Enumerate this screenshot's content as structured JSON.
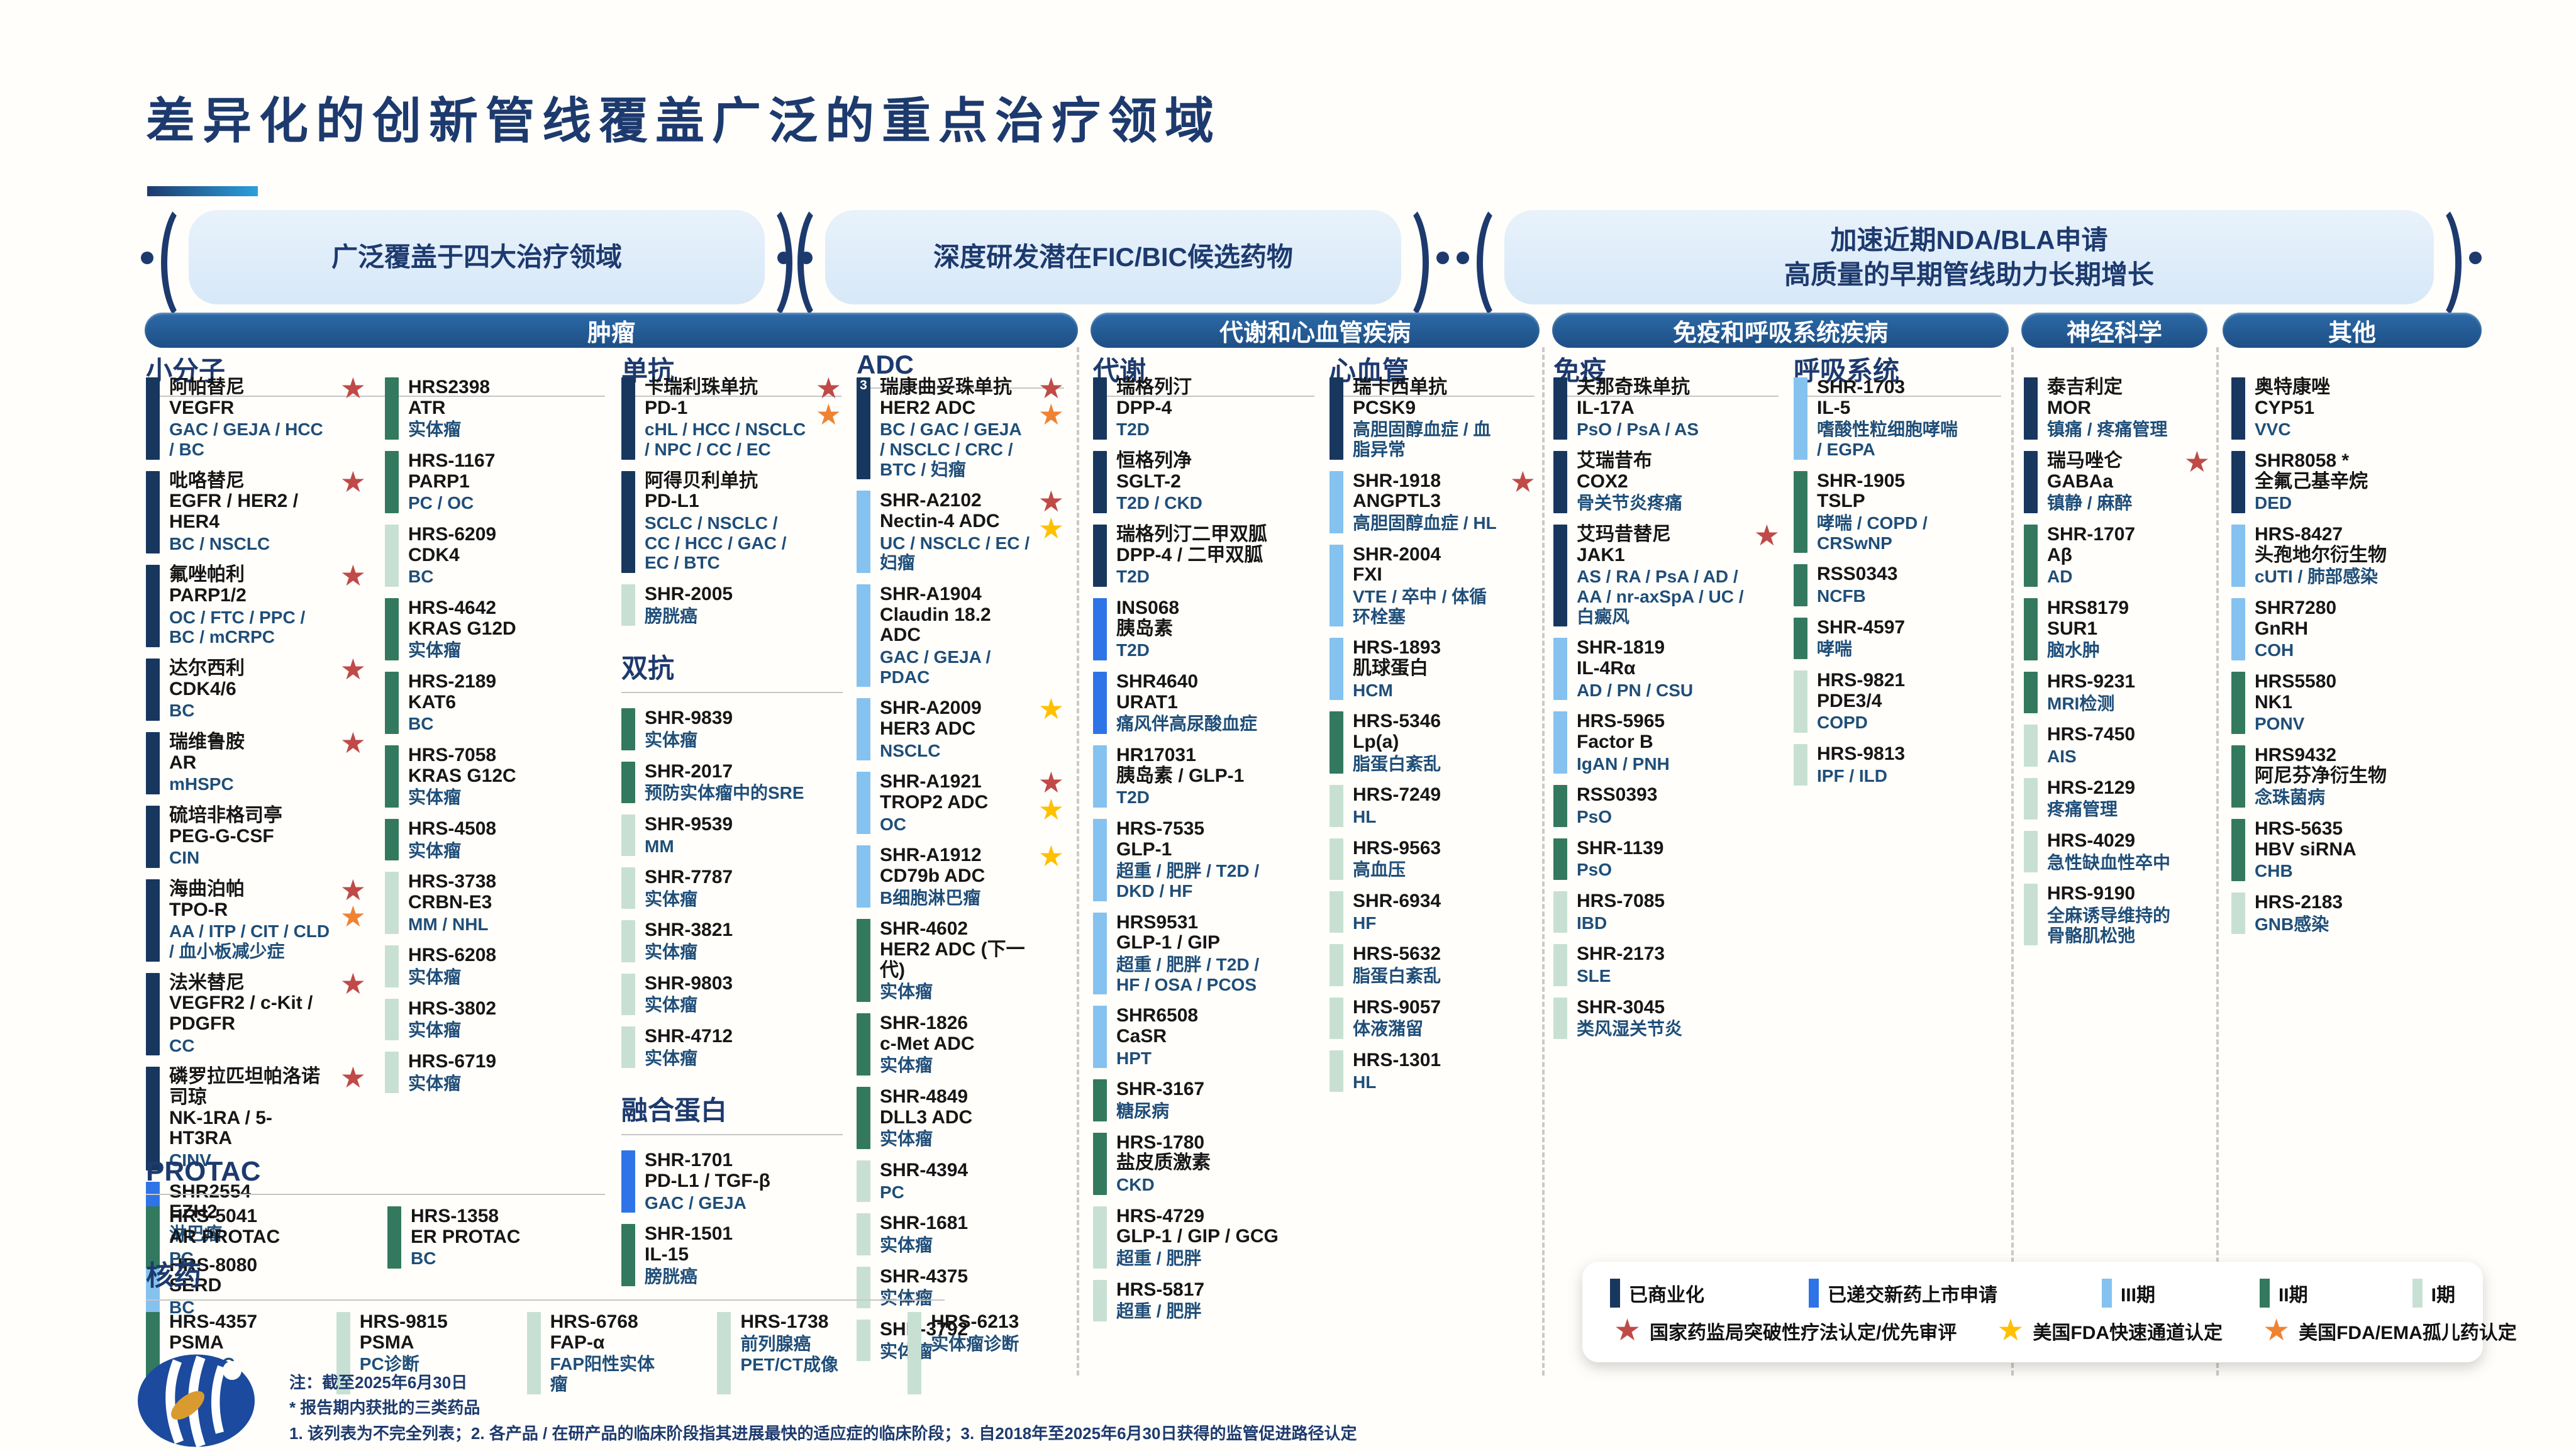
{
  "title": "差异化的创新管线覆盖广泛的重点治疗领域",
  "banners": [
    {
      "l1": "广泛覆盖于四大治疗领域"
    },
    {
      "l1": "深度研发潜在FIC/BIC候选药物"
    },
    {
      "l1": "加速近期NDA/BLA申请",
      "l2": "高质量的早期管线助力长期增长"
    }
  ],
  "sections": [
    "肿瘤",
    "代谢和心血管疾病",
    "免疫和呼吸系统疾病",
    "神经科学",
    "其他"
  ],
  "subheaders": [
    "小分子",
    "单抗",
    "ADC",
    "代谢",
    "心血管",
    "免疫",
    "呼吸系统"
  ],
  "block_labels": {
    "protac": "PROTAC",
    "radiopharma": "核药"
  },
  "phase_colors": {
    "comm": "#17375e",
    "nda": "#2e74e8",
    "p3": "#85c2f0",
    "p2": "#33795f",
    "p1": "#c8e0d3"
  },
  "star_colors": {
    "bt": "#bf4a47",
    "ft": "#ffc000",
    "od": "#ee8333"
  },
  "columns": {
    "sm1": [
      {
        "n": "阿帕替尼",
        "t": "VEGFR",
        "i": "GAC / GEJA / HCC / BC",
        "p": "comm",
        "s": [
          "bt"
        ]
      },
      {
        "n": "吡咯替尼",
        "t": "EGFR / HER2 / HER4",
        "i": "BC / NSCLC",
        "p": "comm",
        "s": [
          "bt"
        ]
      },
      {
        "n": "氟唑帕利",
        "t": "PARP1/2",
        "i": "OC / FTC / PPC / BC / mCRPC",
        "p": "comm",
        "s": [
          "bt"
        ]
      },
      {
        "n": "达尔西利",
        "t": "CDK4/6",
        "i": "BC",
        "p": "comm",
        "s": [
          "bt"
        ]
      },
      {
        "n": "瑞维鲁胺",
        "t": "AR",
        "i": "mHSPC",
        "p": "comm",
        "s": [
          "bt"
        ]
      },
      {
        "n": "硫培非格司亭",
        "t": "PEG-G-CSF",
        "i": "CIN",
        "p": "comm"
      },
      {
        "n": "海曲泊帕",
        "t": "TPO-R",
        "i": "AA / ITP / CIT / CLD / 血小板减少症",
        "p": "comm",
        "s": [
          "bt",
          "od"
        ]
      },
      {
        "n": "法米替尼",
        "t": "VEGFR2 / c-Kit / PDGFR",
        "i": "CC",
        "p": "comm",
        "s": [
          "bt"
        ]
      },
      {
        "n": "磷罗拉匹坦帕洛诺司琼",
        "t": "NK-1RA / 5-HT3RA",
        "i": "CINV",
        "p": "comm",
        "s": [
          "bt"
        ]
      },
      {
        "n": "SHR2554",
        "t": "EZH2",
        "i": "淋巴瘤",
        "p": "nda"
      },
      {
        "n": "HRS-8080",
        "t": "SERD",
        "i": "BC",
        "p": "p3"
      }
    ],
    "sm2": [
      {
        "n": "HRS2398",
        "t": "ATR",
        "i": "实体瘤",
        "p": "p2"
      },
      {
        "n": "HRS-1167",
        "t": "PARP1",
        "i": "PC / OC",
        "p": "p2"
      },
      {
        "n": "HRS-6209",
        "t": "CDK4",
        "i": "BC",
        "p": "p1"
      },
      {
        "n": "HRS-4642",
        "t": "KRAS G12D",
        "i": "实体瘤",
        "p": "p2"
      },
      {
        "n": "HRS-2189",
        "t": "KAT6",
        "i": "BC",
        "p": "p2"
      },
      {
        "n": "HRS-7058",
        "t": "KRAS G12C",
        "i": "实体瘤",
        "p": "p2"
      },
      {
        "n": "HRS-4508",
        "t": "",
        "i": "实体瘤",
        "p": "p2"
      },
      {
        "n": "HRS-3738",
        "t": "CRBN-E3",
        "i": "MM / NHL",
        "p": "p1"
      },
      {
        "n": "HRS-6208",
        "t": "",
        "i": "实体瘤",
        "p": "p1"
      },
      {
        "n": "HRS-3802",
        "t": "",
        "i": "实体瘤",
        "p": "p1"
      },
      {
        "n": "HRS-6719",
        "t": "",
        "i": "实体瘤",
        "p": "p1"
      }
    ],
    "mab": [
      {
        "n": "卡瑞利珠单抗",
        "t": "PD-1",
        "i": "cHL / HCC / NSCLC / NPC / CC / EC",
        "p": "comm",
        "s": [
          "bt",
          "od"
        ]
      },
      {
        "n": "阿得贝利单抗",
        "t": "PD-L1",
        "i": "SCLC / NSCLC / CC / HCC / GAC / EC / BTC",
        "p": "comm"
      },
      {
        "n": "SHR-2005",
        "t": "",
        "i": "膀胱癌",
        "p": "p1"
      },
      {
        "label": "双抗"
      },
      {
        "n": "SHR-9839",
        "t": "",
        "i": "实体瘤",
        "p": "p2"
      },
      {
        "n": "SHR-2017",
        "t": "",
        "i": "预防实体瘤中的SRE",
        "p": "p2"
      },
      {
        "n": "SHR-9539",
        "t": "",
        "i": "MM",
        "p": "p1"
      },
      {
        "n": "SHR-7787",
        "t": "",
        "i": "实体瘤",
        "p": "p1"
      },
      {
        "n": "SHR-3821",
        "t": "",
        "i": "实体瘤",
        "p": "p1"
      },
      {
        "n": "SHR-9803",
        "t": "",
        "i": "实体瘤",
        "p": "p1"
      },
      {
        "n": "SHR-4712",
        "t": "",
        "i": "实体瘤",
        "p": "p1"
      },
      {
        "label": "融合蛋白"
      },
      {
        "n": "SHR-1701",
        "t": "PD-L1 / TGF-β",
        "i": "GAC / GEJA",
        "p": "nda"
      },
      {
        "n": "SHR-1501",
        "t": "IL-15",
        "i": "膀胱癌",
        "p": "p2"
      }
    ],
    "adc": [
      {
        "n": "瑞康曲妥珠单抗",
        "t": "HER2 ADC",
        "i": "BC / GAC / GEJA / NSCLC / CRC / BTC / 妇瘤",
        "p": "comm",
        "s": [
          "bt",
          "od"
        ],
        "note": "3"
      },
      {
        "n": "SHR-A2102",
        "t": "Nectin-4 ADC",
        "i": "UC / NSCLC / EC / 妇瘤",
        "p": "p3",
        "s": [
          "bt",
          "ft"
        ]
      },
      {
        "n": "SHR-A1904",
        "t": "Claudin 18.2 ADC",
        "i": "GAC / GEJA / PDAC",
        "p": "p3"
      },
      {
        "n": "SHR-A2009",
        "t": "HER3 ADC",
        "i": "NSCLC",
        "p": "p3",
        "s": [
          "ft"
        ]
      },
      {
        "n": "SHR-A1921",
        "t": "TROP2 ADC",
        "i": "OC",
        "p": "p3",
        "s": [
          "bt",
          "ft"
        ]
      },
      {
        "n": "SHR-A1912",
        "t": "CD79b ADC",
        "i": "B细胞淋巴瘤",
        "p": "p3",
        "s": [
          "ft"
        ]
      },
      {
        "n": "SHR-4602",
        "t": "HER2 ADC (下一代)",
        "i": "实体瘤",
        "p": "p2"
      },
      {
        "n": "SHR-1826",
        "t": "c-Met ADC",
        "i": "实体瘤",
        "p": "p2"
      },
      {
        "n": "SHR-4849",
        "t": "DLL3 ADC",
        "i": "实体瘤",
        "p": "p2"
      },
      {
        "n": "SHR-4394",
        "t": "",
        "i": "PC",
        "p": "p1"
      },
      {
        "n": "SHR-1681",
        "t": "",
        "i": "实体瘤",
        "p": "p1"
      },
      {
        "n": "SHR-4375",
        "t": "",
        "i": "实体瘤",
        "p": "p1"
      },
      {
        "n": "SHR-3792",
        "t": "",
        "i": "实体瘤",
        "p": "p1"
      }
    ],
    "met": [
      {
        "n": "瑞格列汀",
        "t": "DPP-4",
        "i": "T2D",
        "p": "comm"
      },
      {
        "n": "恒格列净",
        "t": "SGLT-2",
        "i": "T2D / CKD",
        "p": "comm"
      },
      {
        "n": "瑞格列汀二甲双胍",
        "t": "DPP-4 / 二甲双胍",
        "i": "T2D",
        "p": "comm"
      },
      {
        "n": "INS068",
        "t": "胰岛素",
        "i": "T2D",
        "p": "nda"
      },
      {
        "n": "SHR4640",
        "t": "URAT1",
        "i": "痛风伴高尿酸血症",
        "p": "nda"
      },
      {
        "n": "HR17031",
        "t": "胰岛素 / GLP-1",
        "i": "T2D",
        "p": "p3"
      },
      {
        "n": "HRS-7535",
        "t": "GLP-1",
        "i": "超重 / 肥胖 / T2D / DKD / HF",
        "p": "p3"
      },
      {
        "n": "HRS9531",
        "t": "GLP-1 / GIP",
        "i": "超重 / 肥胖 / T2D / HF / OSA / PCOS",
        "p": "p3"
      },
      {
        "n": "SHR6508",
        "t": "CaSR",
        "i": "HPT",
        "p": "p3"
      },
      {
        "n": "SHR-3167",
        "t": "",
        "i": "糖尿病",
        "p": "p2"
      },
      {
        "n": "HRS-1780",
        "t": "盐皮质激素",
        "i": "CKD",
        "p": "p2"
      },
      {
        "n": "HRS-4729",
        "t": "GLP-1 / GIP / GCG",
        "i": "超重 / 肥胖",
        "p": "p1"
      },
      {
        "n": "HRS-5817",
        "t": "",
        "i": "超重 / 肥胖",
        "p": "p1"
      }
    ],
    "cv": [
      {
        "n": "瑞卡西单抗",
        "t": "PCSK9",
        "i": "高胆固醇血症 / 血脂异常",
        "p": "comm"
      },
      {
        "n": "SHR-1918",
        "t": "ANGPTL3",
        "i": "高胆固醇血症 / HL",
        "p": "p3",
        "s": [
          "bt"
        ]
      },
      {
        "n": "SHR-2004",
        "t": "FXI",
        "i": "VTE / 卒中 / 体循环栓塞",
        "p": "p3"
      },
      {
        "n": "HRS-1893",
        "t": "肌球蛋白",
        "i": "HCM",
        "p": "p3"
      },
      {
        "n": "HRS-5346",
        "t": "Lp(a)",
        "i": "脂蛋白紊乱",
        "p": "p2"
      },
      {
        "n": "HRS-7249",
        "t": "",
        "i": "HL",
        "p": "p1"
      },
      {
        "n": "HRS-9563",
        "t": "",
        "i": "高血压",
        "p": "p1"
      },
      {
        "n": "SHR-6934",
        "t": "",
        "i": "HF",
        "p": "p1"
      },
      {
        "n": "HRS-5632",
        "t": "",
        "i": "脂蛋白紊乱",
        "p": "p1"
      },
      {
        "n": "HRS-9057",
        "t": "",
        "i": "体液潴留",
        "p": "p1"
      },
      {
        "n": "HRS-1301",
        "t": "",
        "i": "HL",
        "p": "p1"
      }
    ],
    "imm": [
      {
        "n": "夫那奇珠单抗",
        "t": "IL-17A",
        "i": "PsO / PsA / AS",
        "p": "comm"
      },
      {
        "n": "艾瑞昔布",
        "t": "COX2",
        "i": "骨关节炎疼痛",
        "p": "comm"
      },
      {
        "n": "艾玛昔替尼",
        "t": "JAK1",
        "i": "AS / RA / PsA / AD / AA / nr-axSpA / UC / 白癜风",
        "p": "comm",
        "s": [
          "bt"
        ]
      },
      {
        "n": "SHR-1819",
        "t": "IL-4Rα",
        "i": "AD / PN / CSU",
        "p": "p3"
      },
      {
        "n": "HRS-5965",
        "t": "Factor B",
        "i": "IgAN / PNH",
        "p": "p3"
      },
      {
        "n": "RSS0393",
        "t": "",
        "i": "PsO",
        "p": "p2"
      },
      {
        "n": "SHR-1139",
        "t": "",
        "i": "PsO",
        "p": "p2"
      },
      {
        "n": "HRS-7085",
        "t": "",
        "i": "IBD",
        "p": "p1"
      },
      {
        "n": "SHR-2173",
        "t": "",
        "i": "SLE",
        "p": "p1"
      },
      {
        "n": "SHR-3045",
        "t": "",
        "i": "类风湿关节炎",
        "p": "p1"
      }
    ],
    "resp": [
      {
        "n": "SHR-1703",
        "t": "IL-5",
        "i": "嗜酸性粒细胞哮喘 / EGPA",
        "p": "p3"
      },
      {
        "n": "SHR-1905",
        "t": "TSLP",
        "i": "哮喘 / COPD / CRSwNP",
        "p": "p2"
      },
      {
        "n": "RSS0343",
        "t": "",
        "i": "NCFB",
        "p": "p2"
      },
      {
        "n": "SHR-4597",
        "t": "",
        "i": "哮喘",
        "p": "p2"
      },
      {
        "n": "HRS-9821",
        "t": "PDE3/4",
        "i": "COPD",
        "p": "p1"
      },
      {
        "n": "HRS-9813",
        "t": "",
        "i": "IPF / ILD",
        "p": "p1"
      }
    ],
    "neuro": [
      {
        "n": "泰吉利定",
        "t": "MOR",
        "i": "镇痛 / 疼痛管理",
        "p": "comm"
      },
      {
        "n": "瑞马唑仑",
        "t": "GABAa",
        "i": "镇静 / 麻醉",
        "p": "comm",
        "s": [
          "bt"
        ]
      },
      {
        "n": "SHR-1707",
        "t": "Aβ",
        "i": "AD",
        "p": "p2"
      },
      {
        "n": "HRS8179",
        "t": "SUR1",
        "i": "脑水肿",
        "p": "p2"
      },
      {
        "n": "HRS-9231",
        "t": "",
        "i": "MRI检测",
        "p": "p2"
      },
      {
        "n": "HRS-7450",
        "t": "",
        "i": "AIS",
        "p": "p1"
      },
      {
        "n": "HRS-2129",
        "t": "",
        "i": "疼痛管理",
        "p": "p1"
      },
      {
        "n": "HRS-4029",
        "t": "",
        "i": "急性缺血性卒中",
        "p": "p1"
      },
      {
        "n": "HRS-9190",
        "t": "",
        "i": "全麻诱导维持的骨骼肌松弛",
        "p": "p1"
      }
    ],
    "other": [
      {
        "n": "奥特康唑",
        "t": "CYP51",
        "i": "VVC",
        "p": "comm"
      },
      {
        "n": "SHR8058 *",
        "t": "全氟己基辛烷",
        "i": "DED",
        "p": "comm"
      },
      {
        "n": "HRS-8427",
        "t": "头孢地尔衍生物",
        "i": "cUTI / 肺部感染",
        "p": "p3"
      },
      {
        "n": "SHR7280",
        "t": "GnRH",
        "i": "COH",
        "p": "p3"
      },
      {
        "n": "HRS5580",
        "t": "NK1",
        "i": "PONV",
        "p": "p2"
      },
      {
        "n": "HRS9432",
        "t": "阿尼芬净衍生物",
        "i": "念珠菌病",
        "p": "p2"
      },
      {
        "n": "HRS-5635",
        "t": "HBV siRNA",
        "i": "CHB",
        "p": "p2"
      },
      {
        "n": "HRS-2183",
        "t": "",
        "i": "GNB感染",
        "p": "p1"
      }
    ],
    "protac": [
      {
        "n": "HRS-5041",
        "t": "AR PROTAC",
        "i": "PC",
        "p": "p2"
      },
      {
        "n": "HRS-1358",
        "t": "ER PROTAC",
        "i": "BC",
        "p": "p2"
      }
    ],
    "radiopharma": [
      {
        "n": "HRS-4357",
        "t": "PSMA",
        "i": "mCRPC",
        "p": "p2"
      },
      {
        "n": "HRS-9815",
        "t": "PSMA",
        "i": "PC诊断",
        "p": "p1"
      },
      {
        "n": "HRS-6768",
        "t": "FAP-α",
        "i": "FAP阳性实体瘤",
        "p": "p1"
      },
      {
        "n": "HRS-1738",
        "t": "",
        "i": "前列腺癌",
        "i2": "PET/CT成像",
        "p": "p1"
      },
      {
        "n": "HRS-6213",
        "t": "",
        "i": "实体瘤诊断",
        "p": "p1"
      }
    ]
  },
  "legend": {
    "phases": [
      {
        "key": "comm",
        "label": "已商业化"
      },
      {
        "key": "nda",
        "label": "已递交新药上市申请"
      },
      {
        "key": "p3",
        "label": "III期"
      },
      {
        "key": "p2",
        "label": "II期"
      },
      {
        "key": "p1",
        "label": "I期"
      }
    ],
    "stars": [
      {
        "key": "bt",
        "label": "国家药监局突破性疗法认定/优先审评"
      },
      {
        "key": "ft",
        "label": "美国FDA快速通道认定"
      },
      {
        "key": "od",
        "label": "美国FDA/EMA孤儿药认定"
      }
    ]
  },
  "notes": [
    "注：截至2025年6月30日",
    "* 报告期内获批的三类药品",
    "1. 该列表为不完全列表；2. 各产品 / 在研产品的临床阶段指其进展最快的适应症的临床阶段；3. 自2018年至2025年6月30日获得的监管促进路径认定"
  ]
}
